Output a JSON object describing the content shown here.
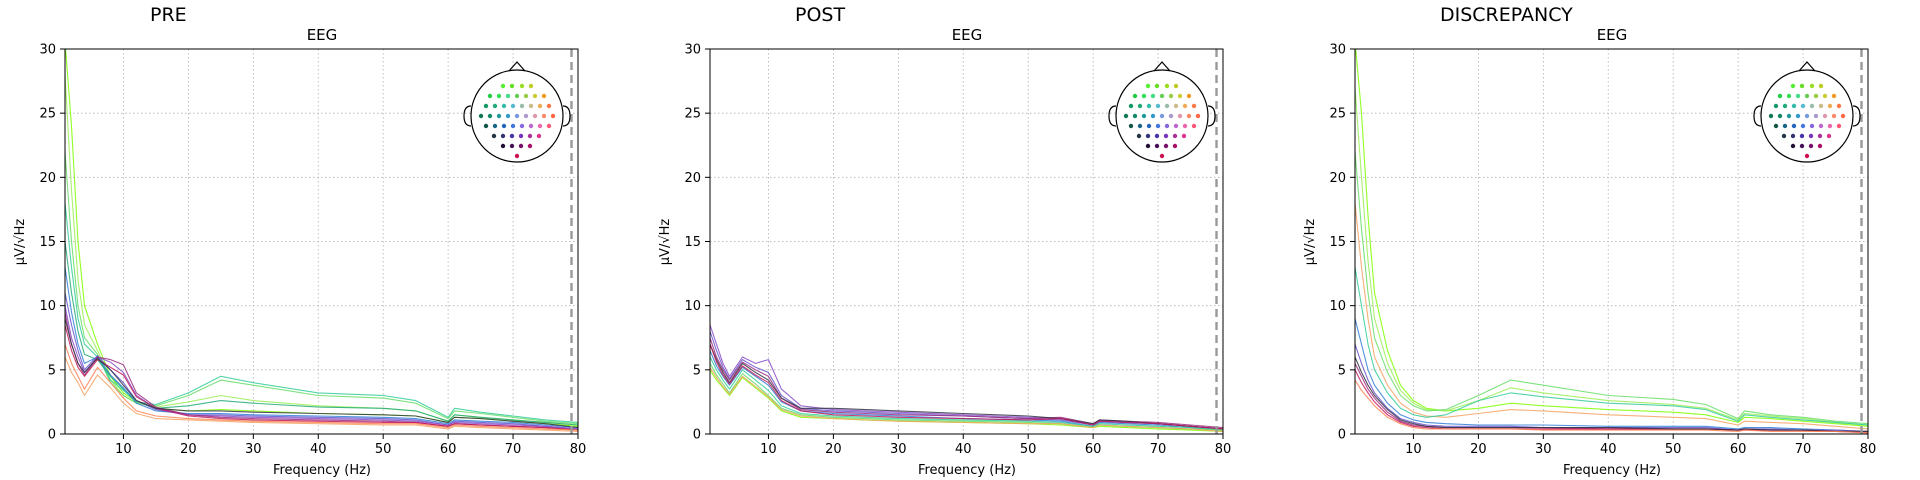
{
  "figure": {
    "panels": [
      {
        "heading": "PRE",
        "title": "EEG",
        "xlabel": "Frequency (Hz)",
        "ylabel": "µV/√Hz"
      },
      {
        "heading": "POST",
        "title": "EEG",
        "xlabel": "Frequency (Hz)",
        "ylabel": "µV/√Hz"
      },
      {
        "heading": "DISCREPANCY",
        "title": "EEG",
        "xlabel": "Frequency (Hz)",
        "ylabel": "µV/√Hz"
      }
    ]
  },
  "chart_data": [
    {
      "type": "line",
      "title": "EEG",
      "heading": "PRE",
      "xlabel": "Frequency (Hz)",
      "ylabel": "µV/√Hz",
      "xlim": [
        1,
        80
      ],
      "ylim": [
        0,
        30
      ],
      "xticks": [
        10,
        20,
        30,
        40,
        50,
        60,
        70,
        80
      ],
      "yticks": [
        0,
        5,
        10,
        15,
        20,
        25,
        30
      ],
      "grid": true,
      "cutoff_line_x": 79,
      "inset": "channel sensor map (top-right)",
      "x": [
        1,
        2,
        3,
        4,
        6,
        8,
        10,
        12,
        15,
        20,
        25,
        30,
        40,
        50,
        55,
        60,
        61,
        65,
        70,
        75,
        80
      ],
      "series": [
        {
          "color": "#7fff00",
          "values": [
            34,
            24,
            15,
            10,
            7,
            4.5,
            3.2,
            2.5,
            2.0,
            1.8,
            1.9,
            1.8,
            1.6,
            1.5,
            1.4,
            0.9,
            1.3,
            1.2,
            1.0,
            0.8,
            0.6
          ]
        },
        {
          "color": "#99ee55",
          "values": [
            28,
            19,
            12,
            8.5,
            6.5,
            4.2,
            3.0,
            2.4,
            2.1,
            2.5,
            3.0,
            2.6,
            2.2,
            2.0,
            1.8,
            1.0,
            1.5,
            1.3,
            1.1,
            0.9,
            0.7
          ]
        },
        {
          "color": "#66dd66",
          "values": [
            22,
            15,
            10,
            7.5,
            6.2,
            4.0,
            3.0,
            2.4,
            2.2,
            3.0,
            4.2,
            3.8,
            3.0,
            2.8,
            2.4,
            1.2,
            1.8,
            1.6,
            1.3,
            1.0,
            0.8
          ]
        },
        {
          "color": "#33cc99",
          "values": [
            18,
            13,
            9,
            7,
            6.0,
            4.2,
            3.4,
            2.5,
            2.3,
            3.2,
            4.5,
            4.0,
            3.2,
            3.0,
            2.6,
            1.3,
            2.0,
            1.7,
            1.4,
            1.1,
            0.9
          ]
        },
        {
          "color": "#22aa77",
          "values": [
            15,
            11,
            8,
            6.2,
            5.8,
            4.5,
            3.5,
            2.6,
            2.0,
            2.2,
            2.6,
            2.4,
            2.1,
            2.0,
            1.8,
            1.0,
            1.5,
            1.3,
            1.1,
            0.9,
            0.7
          ]
        },
        {
          "color": "#2f7fd8",
          "values": [
            13,
            9.5,
            7,
            5.5,
            6.0,
            4.6,
            3.6,
            2.4,
            1.8,
            1.6,
            1.6,
            1.5,
            1.4,
            1.3,
            1.2,
            0.8,
            1.1,
            1.0,
            0.9,
            0.7,
            0.5
          ]
        },
        {
          "color": "#6655cc",
          "values": [
            11,
            8.5,
            6.5,
            5.0,
            6.1,
            5.0,
            4.0,
            2.6,
            1.9,
            1.5,
            1.5,
            1.4,
            1.3,
            1.2,
            1.1,
            0.7,
            1.0,
            0.9,
            0.8,
            0.6,
            0.4
          ]
        },
        {
          "color": "#8a4cc8",
          "values": [
            10,
            7.5,
            6,
            4.8,
            6.0,
            5.6,
            4.8,
            3.0,
            2.0,
            1.5,
            1.4,
            1.3,
            1.2,
            1.1,
            1.0,
            0.7,
            0.9,
            0.8,
            0.7,
            0.6,
            0.4
          ]
        },
        {
          "color": "#9b2d7f",
          "values": [
            9.5,
            7,
            5.5,
            4.6,
            6.0,
            5.8,
            5.4,
            3.2,
            2.1,
            1.5,
            1.3,
            1.2,
            1.1,
            1.0,
            0.9,
            0.6,
            0.8,
            0.7,
            0.6,
            0.5,
            0.3
          ]
        },
        {
          "color": "#c2185b",
          "values": [
            8.5,
            6.5,
            5.2,
            4.5,
            5.8,
            5.2,
            4.6,
            2.9,
            2.0,
            1.4,
            1.2,
            1.1,
            1.0,
            0.9,
            0.9,
            0.6,
            0.8,
            0.7,
            0.6,
            0.5,
            0.3
          ]
        },
        {
          "color": "#333344",
          "values": [
            9,
            7,
            5.5,
            4.8,
            5.9,
            5.0,
            3.8,
            2.6,
            2.0,
            1.8,
            1.8,
            1.7,
            1.6,
            1.5,
            1.4,
            0.9,
            1.3,
            1.2,
            1.0,
            0.8,
            0.5
          ]
        },
        {
          "color": "#ff7f50",
          "values": [
            7,
            5.5,
            4.5,
            3.5,
            5.2,
            4.0,
            2.8,
            1.8,
            1.4,
            1.2,
            1.1,
            1.0,
            0.9,
            0.8,
            0.8,
            0.5,
            0.7,
            0.6,
            0.5,
            0.4,
            0.3
          ]
        },
        {
          "color": "#f4a261",
          "values": [
            6,
            4.8,
            4.0,
            3.0,
            4.6,
            3.6,
            2.4,
            1.6,
            1.2,
            1.1,
            1.0,
            0.9,
            0.8,
            0.7,
            0.7,
            0.4,
            0.6,
            0.5,
            0.4,
            0.3,
            0.2
          ]
        }
      ]
    },
    {
      "type": "line",
      "title": "EEG",
      "heading": "POST",
      "xlabel": "Frequency (Hz)",
      "ylabel": "µV/√Hz",
      "xlim": [
        1,
        80
      ],
      "ylim": [
        0,
        30
      ],
      "xticks": [
        10,
        20,
        30,
        40,
        50,
        60,
        70,
        80
      ],
      "yticks": [
        0,
        5,
        10,
        15,
        20,
        25,
        30
      ],
      "grid": true,
      "cutoff_line_x": 79,
      "inset": "channel sensor map (top-right)",
      "x": [
        1,
        2,
        3,
        4,
        6,
        8,
        10,
        12,
        15,
        20,
        25,
        30,
        40,
        50,
        55,
        60,
        61,
        65,
        70,
        75,
        80
      ],
      "series": [
        {
          "color": "#8a4cc8",
          "values": [
            8.5,
            7.0,
            5.5,
            4.5,
            6.0,
            5.5,
            5.8,
            3.5,
            2.2,
            1.9,
            1.8,
            1.7,
            1.5,
            1.3,
            1.2,
            0.7,
            1.0,
            0.9,
            0.8,
            0.6,
            0.4
          ]
        },
        {
          "color": "#6655cc",
          "values": [
            8.0,
            6.5,
            5.2,
            4.3,
            5.8,
            5.2,
            4.8,
            3.0,
            2.0,
            1.8,
            1.7,
            1.6,
            1.4,
            1.2,
            1.1,
            0.7,
            1.0,
            0.9,
            0.8,
            0.6,
            0.4
          ]
        },
        {
          "color": "#9b2d7f",
          "values": [
            7.5,
            6.0,
            5.0,
            4.2,
            5.6,
            5.0,
            4.5,
            2.8,
            1.9,
            1.7,
            1.6,
            1.5,
            1.4,
            1.2,
            1.3,
            0.8,
            1.1,
            1.0,
            0.9,
            0.7,
            0.5
          ]
        },
        {
          "color": "#333344",
          "values": [
            7.0,
            5.8,
            4.8,
            4.0,
            5.5,
            4.8,
            4.2,
            2.8,
            2.0,
            2.0,
            1.9,
            1.8,
            1.6,
            1.4,
            1.2,
            0.8,
            1.1,
            1.0,
            0.8,
            0.6,
            0.4
          ]
        },
        {
          "color": "#2f7fd8",
          "values": [
            6.5,
            5.3,
            4.5,
            3.8,
            5.2,
            4.5,
            3.8,
            2.5,
            1.8,
            1.6,
            1.5,
            1.4,
            1.2,
            1.1,
            1.0,
            0.6,
            0.9,
            0.8,
            0.7,
            0.5,
            0.3
          ]
        },
        {
          "color": "#33cc99",
          "values": [
            6.0,
            5.0,
            4.2,
            3.5,
            5.0,
            4.2,
            3.4,
            2.2,
            1.6,
            1.4,
            1.3,
            1.2,
            1.1,
            1.0,
            0.9,
            0.6,
            0.8,
            0.7,
            0.6,
            0.5,
            0.3
          ]
        },
        {
          "color": "#66dd66",
          "values": [
            5.5,
            4.6,
            3.9,
            3.2,
            4.7,
            3.9,
            3.0,
            2.0,
            1.5,
            1.3,
            1.2,
            1.1,
            1.0,
            0.9,
            0.8,
            0.5,
            0.7,
            0.6,
            0.5,
            0.4,
            0.3
          ]
        },
        {
          "color": "#7fff00",
          "values": [
            5.0,
            4.2,
            3.6,
            3.0,
            4.4,
            3.6,
            2.8,
            1.8,
            1.3,
            1.2,
            1.1,
            1.0,
            0.9,
            0.8,
            0.7,
            0.5,
            0.6,
            0.5,
            0.4,
            0.3,
            0.2
          ]
        },
        {
          "color": "#c2185b",
          "values": [
            7.0,
            5.6,
            4.6,
            3.9,
            5.3,
            4.6,
            4.0,
            2.6,
            1.8,
            1.5,
            1.4,
            1.3,
            1.2,
            1.1,
            1.2,
            0.7,
            1.0,
            0.9,
            0.8,
            0.6,
            0.4
          ]
        },
        {
          "color": "#f4a261",
          "values": [
            5.2,
            4.4,
            3.7,
            3.1,
            4.5,
            3.7,
            2.9,
            1.9,
            1.4,
            1.2,
            1.1,
            1.0,
            0.9,
            0.8,
            0.8,
            0.5,
            0.7,
            0.6,
            0.5,
            0.4,
            0.2
          ]
        }
      ]
    },
    {
      "type": "line",
      "title": "EEG",
      "heading": "DISCREPANCY",
      "xlabel": "Frequency (Hz)",
      "ylabel": "µV/√Hz",
      "xlim": [
        1,
        80
      ],
      "ylim": [
        0,
        30
      ],
      "xticks": [
        10,
        20,
        30,
        40,
        50,
        60,
        70,
        80
      ],
      "yticks": [
        0,
        5,
        10,
        15,
        20,
        25,
        30
      ],
      "grid": true,
      "cutoff_line_x": 79,
      "inset": "channel sensor map (top-right)",
      "x": [
        1,
        2,
        3,
        4,
        6,
        8,
        10,
        12,
        15,
        20,
        25,
        30,
        40,
        50,
        55,
        60,
        61,
        65,
        70,
        75,
        80
      ],
      "series": [
        {
          "color": "#7fff00",
          "values": [
            34,
            25,
            17,
            11,
            6.5,
            3.8,
            2.6,
            2.0,
            1.8,
            2.0,
            2.4,
            2.2,
            1.9,
            1.7,
            1.5,
            0.9,
            1.3,
            1.2,
            1.0,
            0.8,
            0.6
          ]
        },
        {
          "color": "#99ee55",
          "values": [
            27,
            20,
            13.5,
            9,
            5.5,
            3.4,
            2.4,
            1.9,
            1.8,
            2.6,
            3.6,
            3.2,
            2.6,
            2.3,
            2.0,
            1.1,
            1.6,
            1.4,
            1.2,
            0.9,
            0.7
          ]
        },
        {
          "color": "#66dd66",
          "values": [
            22,
            16,
            11,
            7.5,
            4.8,
            3.0,
            2.2,
            1.8,
            1.9,
            3.0,
            4.2,
            3.8,
            3.0,
            2.7,
            2.3,
            1.2,
            1.8,
            1.5,
            1.3,
            1.0,
            0.8
          ]
        },
        {
          "color": "#f4a261",
          "values": [
            18,
            13,
            9,
            6.0,
            3.8,
            2.4,
            1.7,
            1.4,
            1.3,
            1.6,
            1.9,
            1.8,
            1.5,
            1.3,
            1.2,
            0.7,
            1.0,
            0.9,
            0.8,
            0.6,
            0.4
          ]
        },
        {
          "color": "#33cc99",
          "values": [
            13,
            10,
            7,
            5.0,
            3.2,
            2.0,
            1.5,
            1.3,
            1.5,
            2.6,
            3.2,
            2.9,
            2.4,
            2.2,
            1.9,
            1.0,
            1.5,
            1.3,
            1.1,
            0.9,
            0.7
          ]
        },
        {
          "color": "#2f7fd8",
          "values": [
            9,
            7,
            5,
            3.8,
            2.4,
            1.5,
            1.1,
            0.9,
            0.8,
            0.7,
            0.7,
            0.7,
            0.6,
            0.6,
            0.6,
            0.4,
            0.5,
            0.5,
            0.4,
            0.3,
            0.2
          ]
        },
        {
          "color": "#6655cc",
          "values": [
            7,
            5.5,
            4.2,
            3.2,
            2.0,
            1.2,
            0.9,
            0.7,
            0.6,
            0.6,
            0.6,
            0.5,
            0.5,
            0.5,
            0.5,
            0.3,
            0.4,
            0.4,
            0.3,
            0.3,
            0.2
          ]
        },
        {
          "color": "#9b2d7f",
          "values": [
            5.5,
            4.5,
            3.5,
            2.8,
            1.7,
            1.0,
            0.7,
            0.6,
            0.5,
            0.5,
            0.5,
            0.5,
            0.4,
            0.4,
            0.4,
            0.3,
            0.4,
            0.3,
            0.3,
            0.2,
            0.2
          ]
        },
        {
          "color": "#c2185b",
          "values": [
            5.0,
            4.0,
            3.2,
            2.5,
            1.5,
            0.9,
            0.6,
            0.5,
            0.4,
            0.4,
            0.4,
            0.4,
            0.4,
            0.4,
            0.4,
            0.3,
            0.3,
            0.3,
            0.3,
            0.2,
            0.1
          ]
        },
        {
          "color": "#333344",
          "values": [
            6.0,
            4.8,
            3.8,
            3.0,
            1.9,
            1.1,
            0.8,
            0.6,
            0.5,
            0.5,
            0.5,
            0.5,
            0.5,
            0.4,
            0.4,
            0.3,
            0.4,
            0.3,
            0.3,
            0.2,
            0.2
          ]
        },
        {
          "color": "#ff7f50",
          "values": [
            4.2,
            3.4,
            2.8,
            2.2,
            1.3,
            0.8,
            0.5,
            0.4,
            0.4,
            0.4,
            0.4,
            0.3,
            0.3,
            0.3,
            0.3,
            0.2,
            0.3,
            0.2,
            0.2,
            0.2,
            0.1
          ]
        }
      ]
    }
  ]
}
